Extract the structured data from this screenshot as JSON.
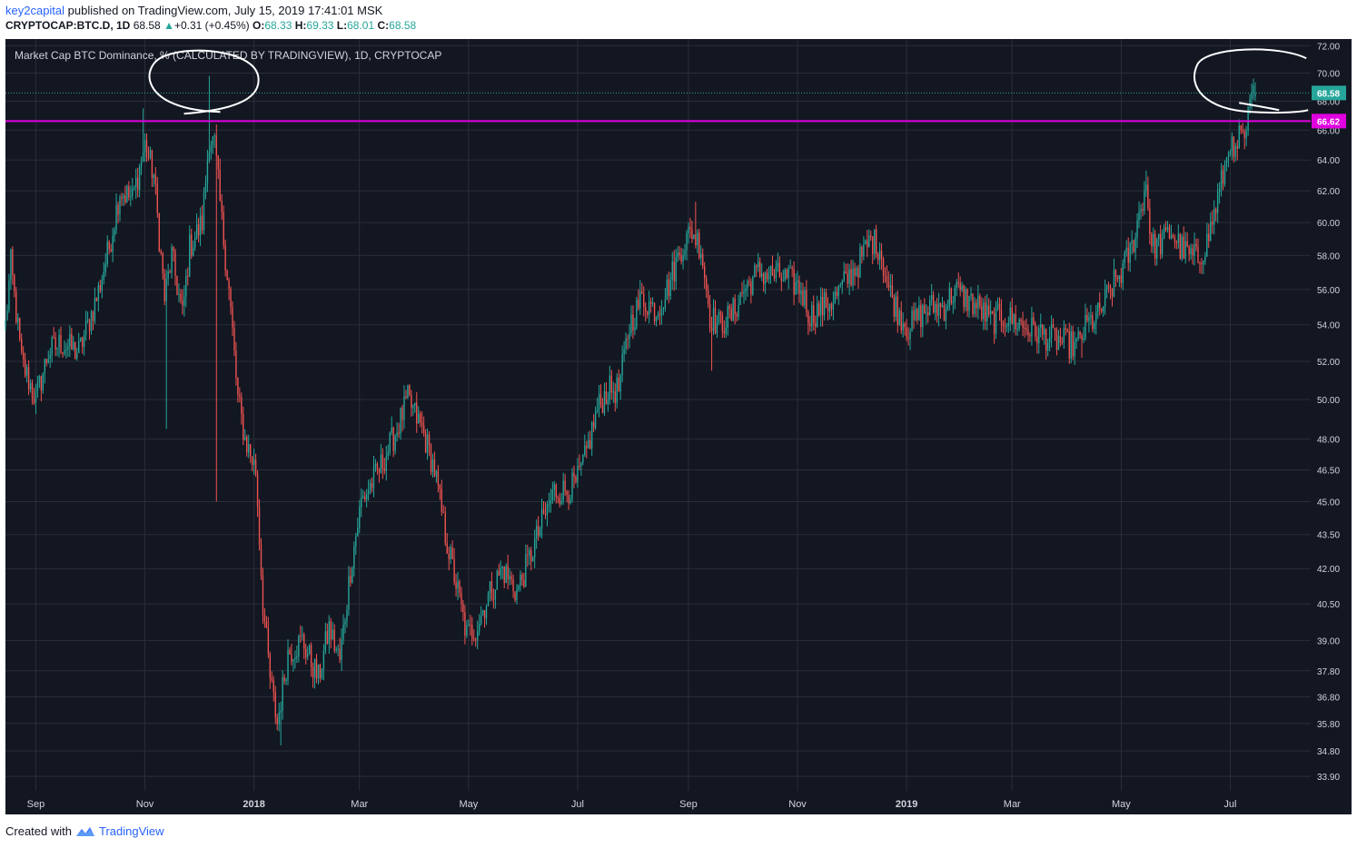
{
  "header": {
    "user": "key2capital",
    "published_text": "published on TradingView.com, July 15, 2019 17:41:01 MSK",
    "symbol": "CRYPTOCAP:BTC.D, 1D",
    "last": "68.58",
    "change": "+0.31 (+0.45%)",
    "o_label": "O:",
    "o_value": "68.33",
    "h_label": "H:",
    "h_value": "69.33",
    "l_label": "L:",
    "l_value": "68.01",
    "c_label": "C:",
    "c_value": "68.58"
  },
  "footer": {
    "created_with": "Created with",
    "brand": "TradingView"
  },
  "colors": {
    "background": "#131722",
    "grid": "#2a2e39",
    "up": "#26a69a",
    "down": "#ef5350",
    "resistance": "#e000e0",
    "annotation": "#ffffff"
  },
  "chart_data": {
    "type": "candlestick",
    "title": "Market Cap BTC Dominance, % (CALCULATED BY TRADINGVIEW), 1D, CRYPTOCAP",
    "y_scale": "log",
    "ylim": [
      33.4,
      72.5
    ],
    "y_ticks": [
      "72.00",
      "70.00",
      "68.00",
      "66.00",
      "64.00",
      "62.00",
      "60.00",
      "58.00",
      "56.00",
      "54.00",
      "52.00",
      "50.00",
      "48.00",
      "46.50",
      "45.00",
      "43.50",
      "42.00",
      "40.50",
      "39.00",
      "37.80",
      "36.80",
      "35.80",
      "34.80",
      "33.90"
    ],
    "x_range": [
      "2017-08-15",
      "2019-08-15"
    ],
    "x_ticks": [
      {
        "date": "2017-09-01",
        "label": "Sep",
        "bold": false
      },
      {
        "date": "2017-11-01",
        "label": "Nov",
        "bold": false
      },
      {
        "date": "2018-01-01",
        "label": "2018",
        "bold": true
      },
      {
        "date": "2018-03-01",
        "label": "Mar",
        "bold": false
      },
      {
        "date": "2018-05-01",
        "label": "May",
        "bold": false
      },
      {
        "date": "2018-07-01",
        "label": "Jul",
        "bold": false
      },
      {
        "date": "2018-09-01",
        "label": "Sep",
        "bold": false
      },
      {
        "date": "2018-11-01",
        "label": "Nov",
        "bold": false
      },
      {
        "date": "2019-01-01",
        "label": "2019",
        "bold": true
      },
      {
        "date": "2019-03-01",
        "label": "Mar",
        "bold": false
      },
      {
        "date": "2019-05-01",
        "label": "May",
        "bold": false
      },
      {
        "date": "2019-07-01",
        "label": "Jul",
        "bold": false
      }
    ],
    "start_date": "2017-08-15",
    "end_date": "2019-07-15",
    "path_keypoints": [
      [
        "2017-08-15",
        54.0
      ],
      [
        "2017-08-18",
        57.5
      ],
      [
        "2017-08-24",
        52.0
      ],
      [
        "2017-09-01",
        50.0
      ],
      [
        "2017-09-08",
        52.5
      ],
      [
        "2017-09-15",
        53.0
      ],
      [
        "2017-09-25",
        52.5
      ],
      [
        "2017-10-05",
        55.5
      ],
      [
        "2017-10-12",
        58.5
      ],
      [
        "2017-10-18",
        62.0
      ],
      [
        "2017-10-25",
        61.5
      ],
      [
        "2017-11-01",
        65.0
      ],
      [
        "2017-11-06",
        63.0
      ],
      [
        "2017-11-12",
        55.5
      ],
      [
        "2017-11-16",
        58.0
      ],
      [
        "2017-11-22",
        54.5
      ],
      [
        "2017-11-26",
        58.5
      ],
      [
        "2017-12-03",
        60.0
      ],
      [
        "2017-12-07",
        65.5
      ],
      [
        "2017-12-10",
        65.0
      ],
      [
        "2017-12-14",
        60.0
      ],
      [
        "2017-12-18",
        56.0
      ],
      [
        "2017-12-23",
        50.0
      ],
      [
        "2017-12-27",
        48.0
      ],
      [
        "2018-01-02",
        46.5
      ],
      [
        "2018-01-06",
        40.5
      ],
      [
        "2018-01-10",
        37.5
      ],
      [
        "2018-01-14",
        35.8
      ],
      [
        "2018-01-20",
        38.5
      ],
      [
        "2018-01-28",
        39.0
      ],
      [
        "2018-02-06",
        37.5
      ],
      [
        "2018-02-12",
        39.5
      ],
      [
        "2018-02-18",
        38.2
      ],
      [
        "2018-02-24",
        42.0
      ],
      [
        "2018-03-02",
        45.0
      ],
      [
        "2018-03-12",
        46.5
      ],
      [
        "2018-03-22",
        48.5
      ],
      [
        "2018-03-28",
        50.0
      ],
      [
        "2018-04-05",
        48.5
      ],
      [
        "2018-04-12",
        46.5
      ],
      [
        "2018-04-18",
        43.5
      ],
      [
        "2018-04-25",
        41.0
      ],
      [
        "2018-04-30",
        39.2
      ],
      [
        "2018-05-05",
        39.5
      ],
      [
        "2018-05-12",
        40.8
      ],
      [
        "2018-05-20",
        42.0
      ],
      [
        "2018-05-28",
        41.0
      ],
      [
        "2018-06-03",
        42.2
      ],
      [
        "2018-06-10",
        43.8
      ],
      [
        "2018-06-18",
        45.5
      ],
      [
        "2018-06-24",
        45.5
      ],
      [
        "2018-06-30",
        45.8
      ],
      [
        "2018-07-05",
        47.0
      ],
      [
        "2018-07-12",
        49.5
      ],
      [
        "2018-07-18",
        50.5
      ],
      [
        "2018-07-24",
        50.5
      ],
      [
        "2018-07-30",
        54.0
      ],
      [
        "2018-08-06",
        55.5
      ],
      [
        "2018-08-14",
        54.8
      ],
      [
        "2018-08-20",
        56.0
      ],
      [
        "2018-08-28",
        58.5
      ],
      [
        "2018-09-03",
        59.5
      ],
      [
        "2018-09-08",
        58.5
      ],
      [
        "2018-09-13",
        54.5
      ],
      [
        "2018-09-18",
        54.0
      ],
      [
        "2018-09-25",
        54.5
      ],
      [
        "2018-10-02",
        56.0
      ],
      [
        "2018-10-10",
        57.0
      ],
      [
        "2018-10-20",
        56.8
      ],
      [
        "2018-10-28",
        56.5
      ],
      [
        "2018-11-03",
        56.0
      ],
      [
        "2018-11-08",
        54.5
      ],
      [
        "2018-11-15",
        55.0
      ],
      [
        "2018-11-22",
        55.5
      ],
      [
        "2018-11-28",
        56.5
      ],
      [
        "2018-12-05",
        57.5
      ],
      [
        "2018-12-12",
        59.0
      ],
      [
        "2018-12-17",
        58.5
      ],
      [
        "2018-12-22",
        56.0
      ],
      [
        "2018-12-27",
        54.8
      ],
      [
        "2019-01-02",
        53.8
      ],
      [
        "2019-01-08",
        54.5
      ],
      [
        "2019-01-15",
        55.0
      ],
      [
        "2019-01-22",
        55.0
      ],
      [
        "2019-01-28",
        56.0
      ],
      [
        "2019-02-03",
        55.5
      ],
      [
        "2019-02-10",
        55.0
      ],
      [
        "2019-02-17",
        54.2
      ],
      [
        "2019-02-24",
        54.5
      ],
      [
        "2019-03-03",
        54.2
      ],
      [
        "2019-03-10",
        53.8
      ],
      [
        "2019-03-17",
        53.5
      ],
      [
        "2019-03-24",
        53.2
      ],
      [
        "2019-03-31",
        53.0
      ],
      [
        "2019-04-06",
        52.8
      ],
      [
        "2019-04-12",
        54.0
      ],
      [
        "2019-04-18",
        54.5
      ],
      [
        "2019-04-25",
        56.0
      ],
      [
        "2019-05-01",
        57.0
      ],
      [
        "2019-05-07",
        58.5
      ],
      [
        "2019-05-12",
        61.0
      ],
      [
        "2019-05-15",
        62.5
      ],
      [
        "2019-05-18",
        58.5
      ],
      [
        "2019-05-24",
        58.8
      ],
      [
        "2019-05-29",
        59.5
      ],
      [
        "2019-06-03",
        58.5
      ],
      [
        "2019-06-08",
        58.0
      ],
      [
        "2019-06-13",
        57.8
      ],
      [
        "2019-06-18",
        58.8
      ],
      [
        "2019-06-23",
        61.0
      ],
      [
        "2019-06-28",
        63.5
      ],
      [
        "2019-07-01",
        65.5
      ],
      [
        "2019-07-03",
        63.8
      ],
      [
        "2019-07-06",
        65.5
      ],
      [
        "2019-07-09",
        65.0
      ],
      [
        "2019-07-12",
        67.8
      ],
      [
        "2019-07-15",
        68.58
      ]
    ],
    "extreme_wicks": [
      [
        "2017-10-31",
        67.5,
        null
      ],
      [
        "2017-11-13",
        null,
        48.5
      ],
      [
        "2017-12-07",
        69.8,
        null
      ],
      [
        "2017-12-11",
        null,
        45.0
      ],
      [
        "2018-01-16",
        null,
        35.0
      ],
      [
        "2018-05-03",
        null,
        38.8
      ],
      [
        "2018-09-05",
        61.3,
        null
      ],
      [
        "2018-09-14",
        null,
        51.5
      ],
      [
        "2019-04-09",
        null,
        52.2
      ],
      [
        "2019-05-15",
        63.3,
        null
      ],
      [
        "2019-07-15",
        69.33,
        68.01
      ]
    ],
    "last_price": 68.58,
    "horizontal_line": {
      "value": 66.62,
      "label": "66.62"
    },
    "last_price_label": "68.58",
    "annotations": [
      {
        "type": "circle",
        "center_date": "2017-12-03",
        "center_value": 69.3
      },
      {
        "type": "circle",
        "center_date": "2019-07-08",
        "center_value": 69.3
      }
    ]
  }
}
